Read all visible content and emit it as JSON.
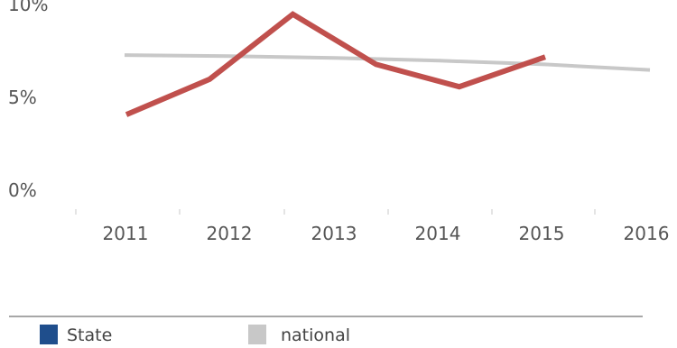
{
  "chart_data": {
    "type": "line",
    "title": "",
    "xlabel": "",
    "ylabel": "",
    "categories": [
      "2011",
      "2012",
      "2013",
      "2014",
      "2015",
      "2016"
    ],
    "y_ticks": [
      "0%",
      "5%",
      "10%"
    ],
    "ylim": [
      0,
      10
    ],
    "grid": false,
    "legend_position": "bottom",
    "series": [
      {
        "name": "State",
        "values": [
          4.9,
          6.8,
          10.3,
          7.6,
          6.4,
          8.0
        ],
        "color": "#c0504d",
        "legend_color": "#1f4e8c"
      },
      {
        "name": "national",
        "values": [
          8.1,
          8.05,
          7.95,
          7.8,
          7.6,
          7.3
        ],
        "color": "#c8c8c8",
        "legend_color": "#c8c8c8"
      }
    ]
  }
}
